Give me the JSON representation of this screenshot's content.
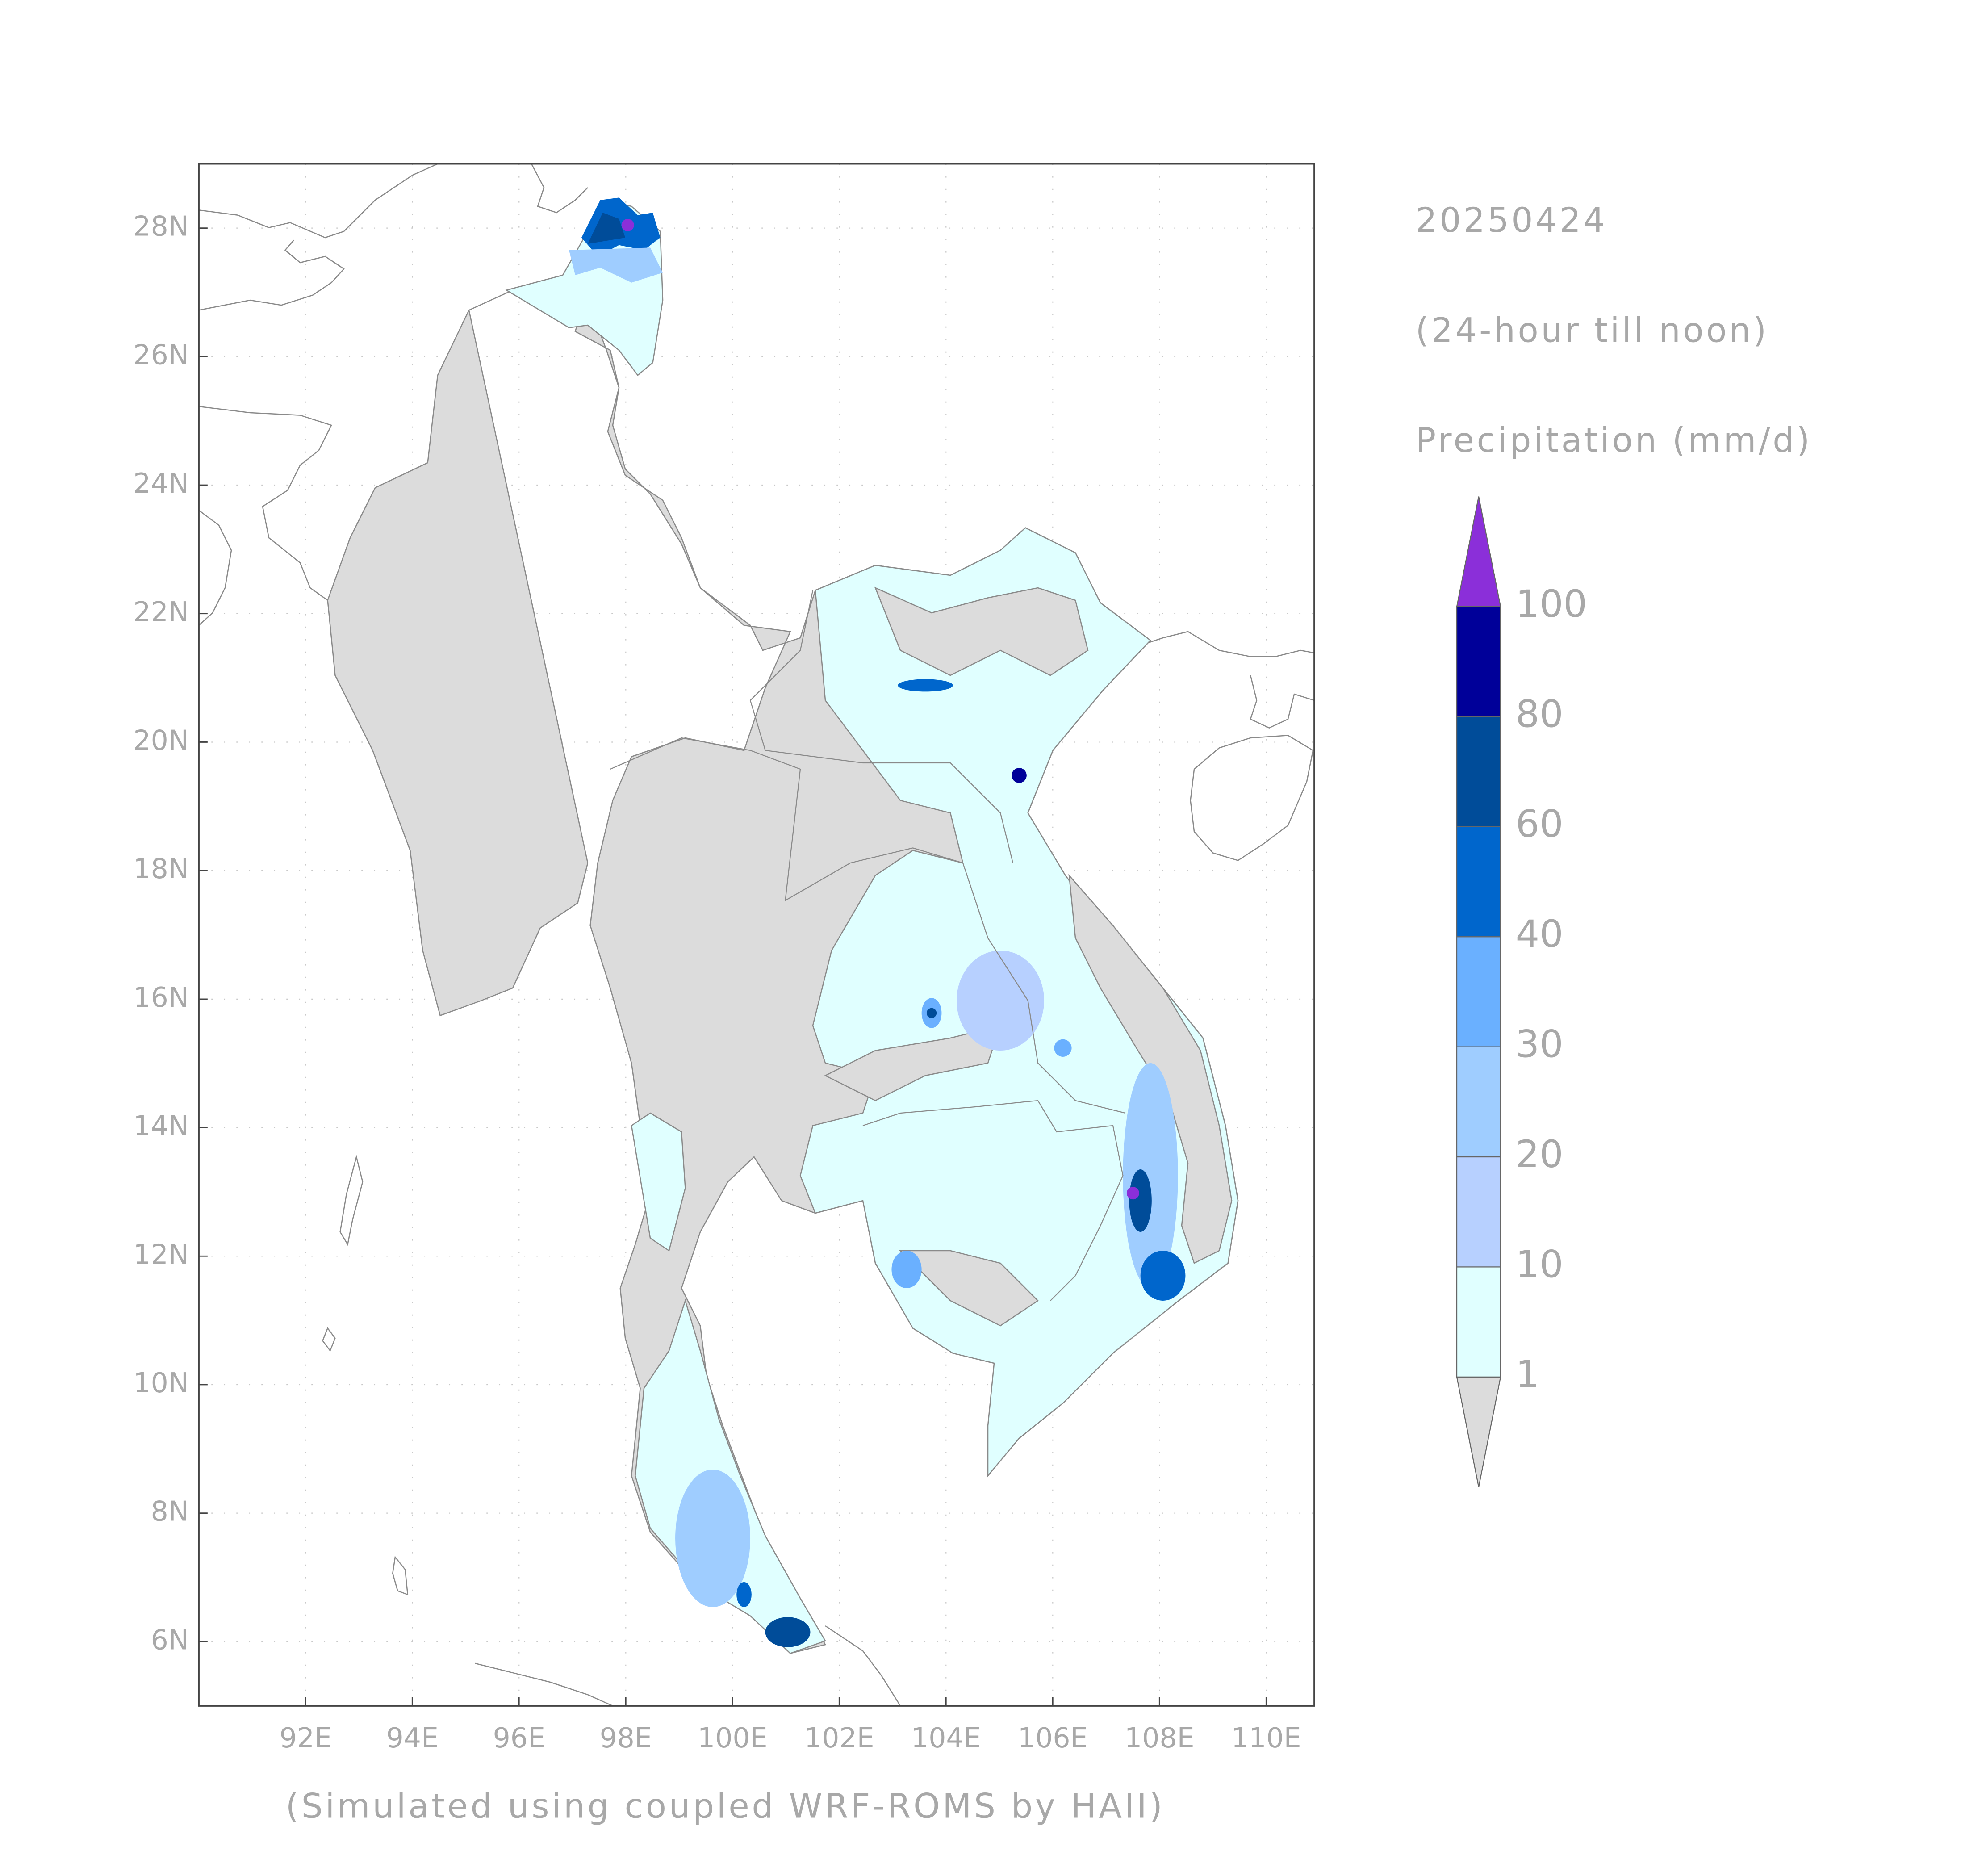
{
  "chart_data": {
    "type": "map",
    "title": "20250424",
    "subtitle": "(24-hour till noon)",
    "variable": "Precipitation (mm/d)",
    "credit": "(Simulated using coupled WRF-ROMS by HAII)",
    "xlim": [
      90,
      110.9
    ],
    "ylim": [
      5,
      29
    ],
    "xticks": [
      {
        "value": 92,
        "label": "92E"
      },
      {
        "value": 94,
        "label": "94E"
      },
      {
        "value": 96,
        "label": "96E"
      },
      {
        "value": 98,
        "label": "98E"
      },
      {
        "value": 100,
        "label": "100E"
      },
      {
        "value": 102,
        "label": "102E"
      },
      {
        "value": 104,
        "label": "104E"
      },
      {
        "value": 106,
        "label": "106E"
      },
      {
        "value": 108,
        "label": "108E"
      },
      {
        "value": 110,
        "label": "110E"
      }
    ],
    "yticks": [
      {
        "value": 6,
        "label": "6N"
      },
      {
        "value": 8,
        "label": "8N"
      },
      {
        "value": 10,
        "label": "10N"
      },
      {
        "value": 12,
        "label": "12N"
      },
      {
        "value": 14,
        "label": "14N"
      },
      {
        "value": 16,
        "label": "16N"
      },
      {
        "value": 18,
        "label": "18N"
      },
      {
        "value": 20,
        "label": "20N"
      },
      {
        "value": 22,
        "label": "22N"
      },
      {
        "value": 24,
        "label": "24N"
      },
      {
        "value": 26,
        "label": "26N"
      },
      {
        "value": 28,
        "label": "28N"
      }
    ],
    "grid": true,
    "colorbar": {
      "levels": [
        1,
        10,
        20,
        30,
        40,
        60,
        80,
        100
      ],
      "colors": [
        "#dcdcdc",
        "#e0ffff",
        "#b7d0ff",
        "#9fcdff",
        "#6ab0ff",
        "#0066cc",
        "#004c99",
        "#000099",
        "#8b2fd9"
      ]
    }
  }
}
